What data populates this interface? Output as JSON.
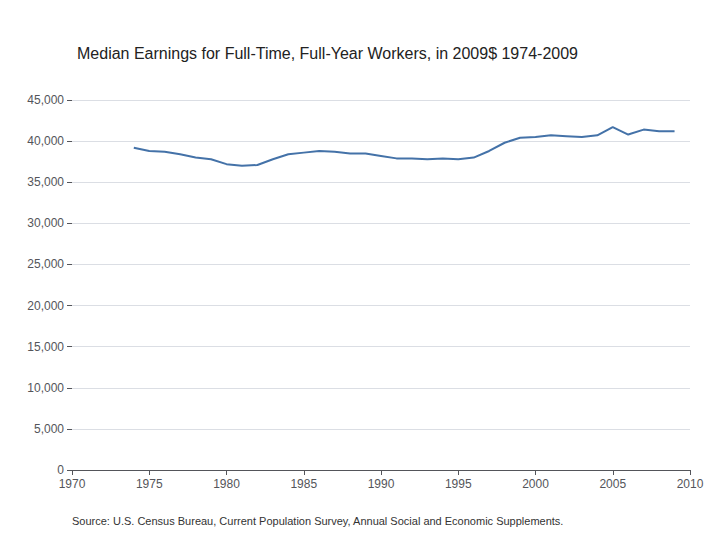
{
  "chart_data": {
    "type": "line",
    "title": "Median Earnings for Full-Time, Full-Year Workers, in 2009$ 1974-2009",
    "annotations": [
      "Source: U.S. Census Bureau, Current Population Survey, Annual Social and Economic Supplements."
    ],
    "x": [
      1974,
      1975,
      1976,
      1977,
      1978,
      1979,
      1980,
      1981,
      1982,
      1983,
      1984,
      1985,
      1986,
      1987,
      1988,
      1989,
      1990,
      1991,
      1992,
      1993,
      1994,
      1995,
      1996,
      1997,
      1998,
      1999,
      2000,
      2001,
      2002,
      2003,
      2004,
      2005,
      2006,
      2007,
      2008,
      2009
    ],
    "values": [
      39200,
      38800,
      38700,
      38400,
      38000,
      37800,
      37200,
      37000,
      37100,
      37800,
      38400,
      38600,
      38800,
      38700,
      38500,
      38500,
      38200,
      37900,
      37900,
      37800,
      37900,
      37800,
      38000,
      38800,
      39800,
      40400,
      40500,
      40700,
      40600,
      40500,
      40700,
      41700,
      40800,
      41400,
      41200,
      41200
    ],
    "color": "#4472a8",
    "xlim": [
      1970,
      2010
    ],
    "xticks": [
      1970,
      1975,
      1980,
      1985,
      1990,
      1995,
      2000,
      2005,
      2010
    ],
    "ylim": [
      0,
      45000
    ],
    "yticks": [
      0,
      {
        "value": 5000,
        "label": "5,000"
      },
      {
        "value": 10000,
        "label": "10,000"
      },
      {
        "value": 15000,
        "label": "15,000"
      },
      {
        "value": 20000,
        "label": "20,000"
      },
      {
        "value": 25000,
        "label": "25,000"
      },
      {
        "value": 30000,
        "label": "30,000"
      },
      {
        "value": 35000,
        "label": "35,000"
      },
      {
        "value": 40000,
        "label": "40,000"
      },
      {
        "value": 45000,
        "label": "45,000"
      }
    ],
    "grid": true
  }
}
